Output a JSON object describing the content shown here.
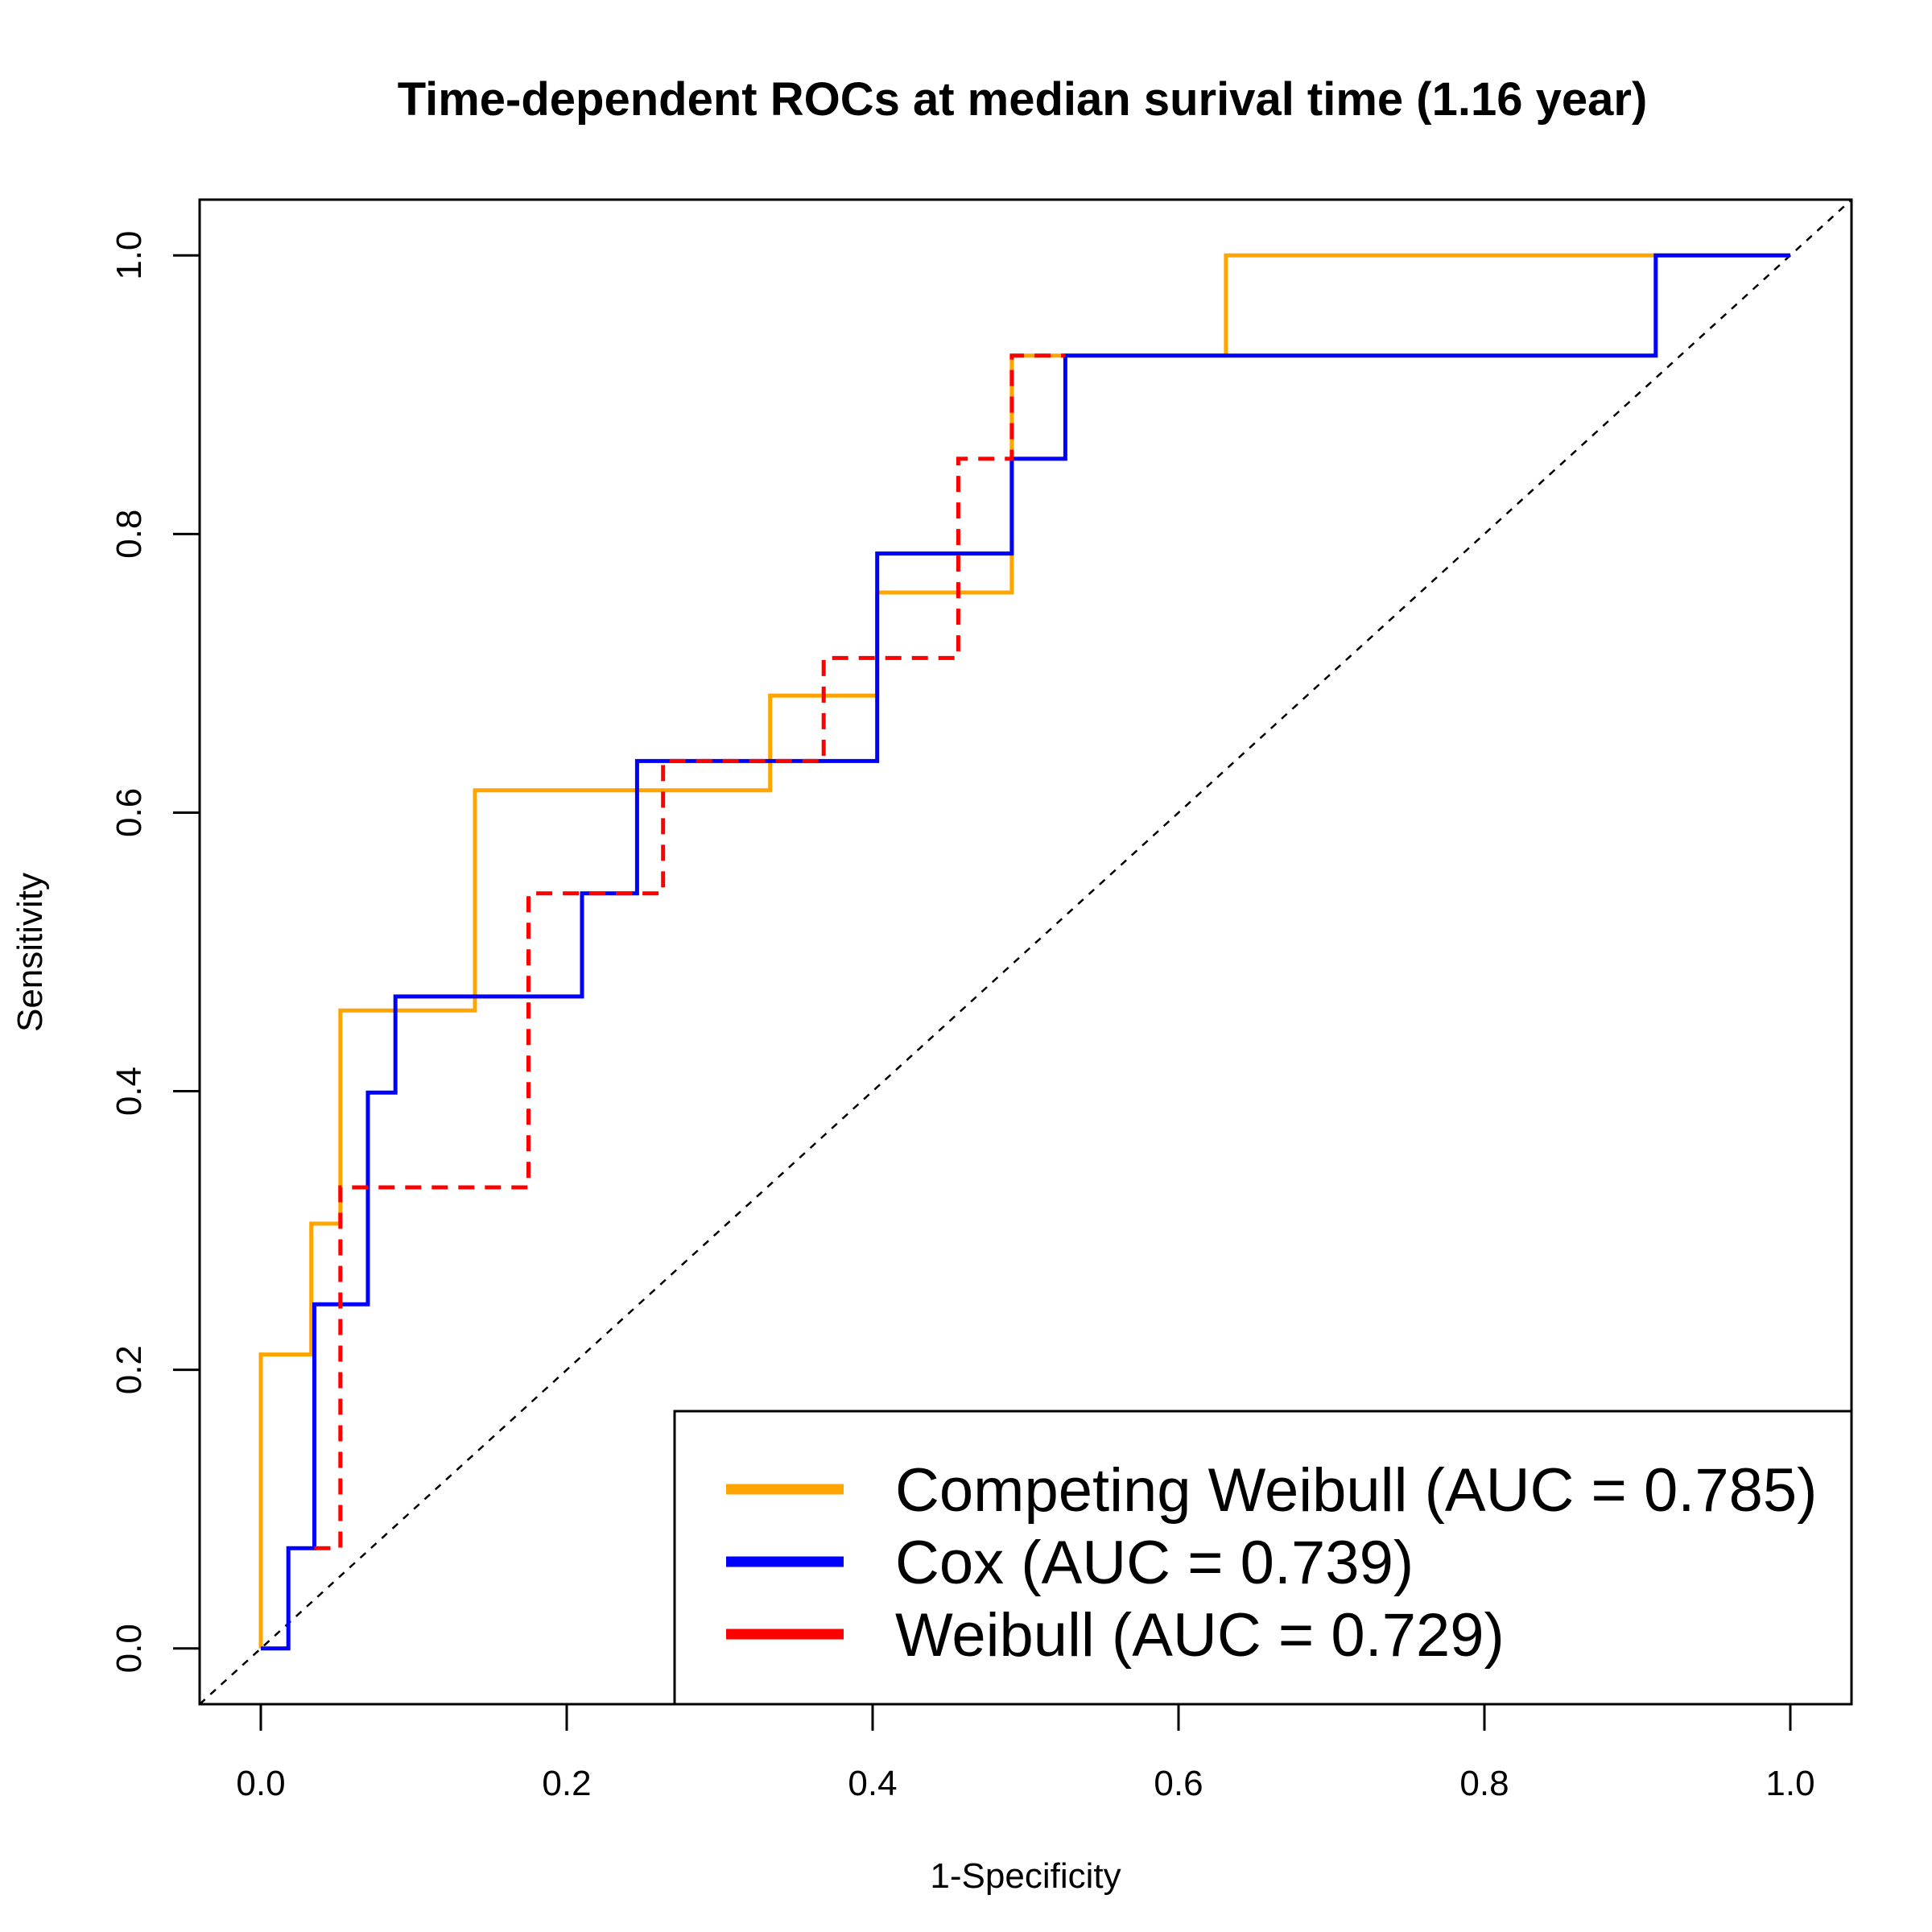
{
  "chart_data": {
    "type": "line",
    "title": "Time-dependent ROCs at median surival time (1.16 year)",
    "xlabel": "1-Specificity",
    "ylabel": "Sensitivity",
    "xlim": [
      -0.04,
      1.04
    ],
    "ylim": [
      -0.04,
      1.04
    ],
    "x_ticks": [
      0.0,
      0.2,
      0.4,
      0.6,
      0.8,
      1.0
    ],
    "y_ticks": [
      0.0,
      0.2,
      0.4,
      0.6,
      0.8,
      1.0
    ],
    "x_tick_labels": [
      "0.0",
      "0.2",
      "0.4",
      "0.6",
      "0.8",
      "1.0"
    ],
    "y_tick_labels": [
      "0.0",
      "0.2",
      "0.4",
      "0.6",
      "0.8",
      "1.0"
    ],
    "grid": false,
    "legend_position": "bottom-right",
    "reference_line": {
      "style": "dashed",
      "color": "#000000",
      "from": [
        -0.04,
        -0.04
      ],
      "to": [
        1.04,
        1.04
      ]
    },
    "series": [
      {
        "name": "Competing Weibull (AUC = 0.785)",
        "color": "#FFA500",
        "style": "solid",
        "x": [
          0.0,
          0.0,
          0.033,
          0.033,
          0.052,
          0.052,
          0.14,
          0.14,
          0.333,
          0.333,
          0.403,
          0.403,
          0.491,
          0.491,
          0.631,
          0.631,
          1.0
        ],
        "y": [
          0.0,
          0.211,
          0.211,
          0.305,
          0.305,
          0.458,
          0.458,
          0.616,
          0.616,
          0.684,
          0.684,
          0.758,
          0.758,
          0.928,
          0.928,
          1.0,
          1.0
        ]
      },
      {
        "name": "Cox (AUC = 0.739)",
        "color": "#0000FF",
        "style": "solid",
        "x": [
          0.0,
          0.018,
          0.018,
          0.035,
          0.035,
          0.07,
          0.07,
          0.088,
          0.088,
          0.21,
          0.21,
          0.246,
          0.246,
          0.403,
          0.403,
          0.491,
          0.491,
          0.526,
          0.526,
          0.912,
          0.912,
          1.0
        ],
        "y": [
          0.0,
          0.0,
          0.072,
          0.072,
          0.247,
          0.247,
          0.399,
          0.399,
          0.468,
          0.468,
          0.542,
          0.542,
          0.637,
          0.637,
          0.786,
          0.786,
          0.854,
          0.854,
          0.928,
          0.928,
          1.0,
          1.0
        ]
      },
      {
        "name": "Weibull (AUC = 0.729)",
        "color": "#FF0000",
        "style": "dashed",
        "x": [
          0.035,
          0.052,
          0.052,
          0.175,
          0.175,
          0.263,
          0.263,
          0.368,
          0.368,
          0.456,
          0.456,
          0.491,
          0.491,
          0.526
        ],
        "y": [
          0.072,
          0.072,
          0.331,
          0.331,
          0.542,
          0.542,
          0.637,
          0.637,
          0.711,
          0.711,
          0.854,
          0.854,
          0.928,
          0.928
        ]
      }
    ]
  }
}
